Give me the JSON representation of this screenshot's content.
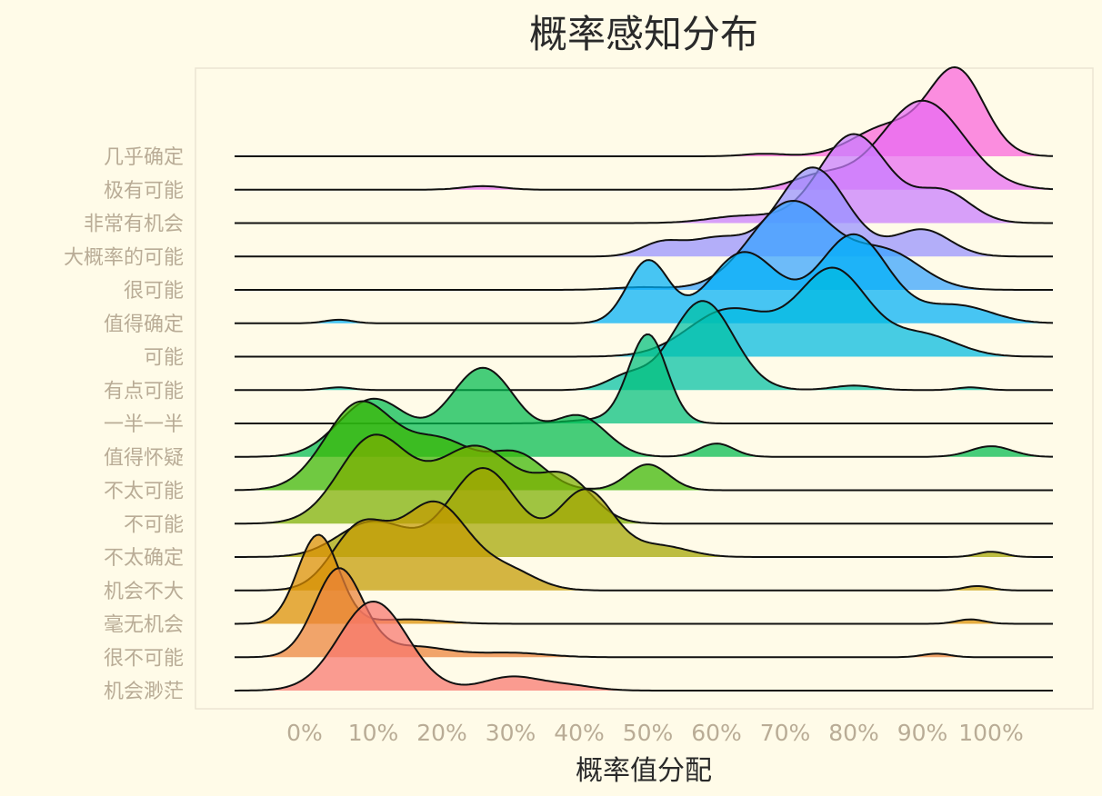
{
  "chart_data": {
    "type": "ridgeline",
    "title": "概率感知分布",
    "xlabel": "概率值分配",
    "ylabel": "",
    "x_ticks": [
      "0%",
      "10%",
      "20%",
      "30%",
      "40%",
      "50%",
      "60%",
      "70%",
      "80%",
      "90%",
      "100%"
    ],
    "xlim": [
      0,
      100
    ],
    "grid": false,
    "legend": "none",
    "series": [
      {
        "name": "机会渺茫",
        "color": "#f8766d",
        "components": [
          {
            "mean": 10,
            "sd": 5,
            "weight": 1.0
          },
          {
            "mean": 30,
            "sd": 4,
            "weight": 0.15
          },
          {
            "mean": 38,
            "sd": 4,
            "weight": 0.06
          }
        ]
      },
      {
        "name": "很不可能",
        "color": "#ec8239",
        "components": [
          {
            "mean": 5,
            "sd": 3.5,
            "weight": 1.0
          },
          {
            "mean": 16,
            "sd": 5,
            "weight": 0.12
          },
          {
            "mean": 30,
            "sd": 5,
            "weight": 0.05
          },
          {
            "mean": 92,
            "sd": 2,
            "weight": 0.04
          }
        ]
      },
      {
        "name": "毫无机会",
        "color": "#db8e00",
        "components": [
          {
            "mean": 2,
            "sd": 3,
            "weight": 1.0
          },
          {
            "mean": 15,
            "sd": 5,
            "weight": 0.05
          },
          {
            "mean": 97,
            "sd": 2,
            "weight": 0.05
          }
        ]
      },
      {
        "name": "机会不大",
        "color": "#c49a00",
        "components": [
          {
            "mean": 8,
            "sd": 4,
            "weight": 0.7
          },
          {
            "mean": 19,
            "sd": 5,
            "weight": 1.0
          },
          {
            "mean": 30,
            "sd": 4,
            "weight": 0.2
          },
          {
            "mean": 98,
            "sd": 2,
            "weight": 0.05
          }
        ]
      },
      {
        "name": "不太确定",
        "color": "#a3a500",
        "components": [
          {
            "mean": 10,
            "sd": 5,
            "weight": 0.4
          },
          {
            "mean": 26,
            "sd": 5,
            "weight": 1.0
          },
          {
            "mean": 41,
            "sd": 4,
            "weight": 0.75
          },
          {
            "mean": 52,
            "sd": 4,
            "weight": 0.12
          },
          {
            "mean": 100,
            "sd": 2,
            "weight": 0.06
          }
        ]
      },
      {
        "name": "不可能",
        "color": "#7cae00",
        "components": [
          {
            "mean": 10,
            "sd": 5,
            "weight": 1.0
          },
          {
            "mean": 25,
            "sd": 6,
            "weight": 0.9
          },
          {
            "mean": 38,
            "sd": 4,
            "weight": 0.5
          }
        ]
      },
      {
        "name": "不太可能",
        "color": "#39b600",
        "components": [
          {
            "mean": 8,
            "sd": 5,
            "weight": 1.0
          },
          {
            "mean": 20,
            "sd": 5,
            "weight": 0.55
          },
          {
            "mean": 31,
            "sd": 4,
            "weight": 0.4
          },
          {
            "mean": 50,
            "sd": 3,
            "weight": 0.3
          }
        ]
      },
      {
        "name": "值得怀疑",
        "color": "#00bb4e",
        "components": [
          {
            "mean": 10,
            "sd": 5,
            "weight": 0.65
          },
          {
            "mean": 26,
            "sd": 5,
            "weight": 1.0
          },
          {
            "mean": 40,
            "sd": 4,
            "weight": 0.45
          },
          {
            "mean": 60,
            "sd": 2.5,
            "weight": 0.15
          },
          {
            "mean": 100,
            "sd": 3,
            "weight": 0.12
          }
        ]
      },
      {
        "name": "一半一半",
        "color": "#00bf7d",
        "components": [
          {
            "mean": 50,
            "sd": 2.8,
            "weight": 1.0
          },
          {
            "mean": 42,
            "sd": 4,
            "weight": 0.04
          }
        ]
      },
      {
        "name": "有点可能",
        "color": "#00c1a3",
        "components": [
          {
            "mean": 58,
            "sd": 4.5,
            "weight": 1.0
          },
          {
            "mean": 47,
            "sd": 3,
            "weight": 0.15
          },
          {
            "mean": 80,
            "sd": 3,
            "weight": 0.05
          },
          {
            "mean": 5,
            "sd": 2,
            "weight": 0.03
          },
          {
            "mean": 97,
            "sd": 2,
            "weight": 0.03
          }
        ]
      },
      {
        "name": "可能",
        "color": "#00bae0",
        "components": [
          {
            "mean": 62,
            "sd": 6,
            "weight": 0.55
          },
          {
            "mean": 77,
            "sd": 5,
            "weight": 1.0
          },
          {
            "mean": 90,
            "sd": 5,
            "weight": 0.25
          }
        ]
      },
      {
        "name": "值得确定",
        "color": "#00b0f6",
        "components": [
          {
            "mean": 50,
            "sd": 3,
            "weight": 0.7
          },
          {
            "mean": 64,
            "sd": 5,
            "weight": 0.8
          },
          {
            "mean": 80,
            "sd": 5,
            "weight": 1.0
          },
          {
            "mean": 95,
            "sd": 5,
            "weight": 0.2
          },
          {
            "mean": 5,
            "sd": 2,
            "weight": 0.04
          }
        ]
      },
      {
        "name": "很可能",
        "color": "#35a2ff",
        "components": [
          {
            "mean": 71,
            "sd": 6,
            "weight": 1.0
          },
          {
            "mean": 85,
            "sd": 5,
            "weight": 0.4
          },
          {
            "mean": 49,
            "sd": 4,
            "weight": 0.03
          }
        ]
      },
      {
        "name": "大概率的可能",
        "color": "#9590ff",
        "components": [
          {
            "mean": 60,
            "sd": 4,
            "weight": 0.2
          },
          {
            "mean": 74,
            "sd": 5,
            "weight": 1.0
          },
          {
            "mean": 90,
            "sd": 4,
            "weight": 0.3
          },
          {
            "mean": 52,
            "sd": 3,
            "weight": 0.15
          }
        ]
      },
      {
        "name": "非常有机会",
        "color": "#c77cff",
        "components": [
          {
            "mean": 80,
            "sd": 5,
            "weight": 1.0
          },
          {
            "mean": 93,
            "sd": 4,
            "weight": 0.35
          },
          {
            "mean": 64,
            "sd": 5,
            "weight": 0.08
          }
        ]
      },
      {
        "name": "极有可能",
        "color": "#e76bf3",
        "components": [
          {
            "mean": 90,
            "sd": 6,
            "weight": 1.0
          },
          {
            "mean": 75,
            "sd": 4,
            "weight": 0.15
          },
          {
            "mean": 26,
            "sd": 3,
            "weight": 0.04
          }
        ]
      },
      {
        "name": "几乎确定",
        "color": "#fa62db",
        "components": [
          {
            "mean": 95,
            "sd": 4,
            "weight": 1.0
          },
          {
            "mean": 85,
            "sd": 5,
            "weight": 0.35
          },
          {
            "mean": 67,
            "sd": 3,
            "weight": 0.03
          }
        ]
      }
    ]
  }
}
